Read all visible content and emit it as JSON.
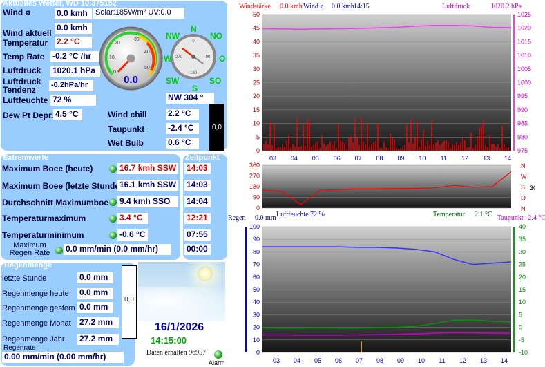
{
  "colors": {
    "panel": "#99ccff",
    "value_text": "#000066",
    "alert_text": "#cc0000",
    "wind": "#ff0000",
    "baro": "#ff33ff",
    "humidity": "#3333ff",
    "temp": "#009900",
    "dew": "#cc00cc"
  },
  "current": {
    "title": "Aktuelles Wetter, WD 10.375152",
    "wind_avg_label": "Wind ø",
    "wind_avg_value": "0.0 kmh",
    "solar_uv": "Solar:185W/m² UV:0.0",
    "wind_now_label": "Wind aktuell",
    "wind_now_value": "0.0 kmh",
    "temp_label": "Temperatur",
    "temp_value": "2.2 °C",
    "temp_rate_label": "Temp Rate",
    "temp_rate_value": "-0.2 °C /hr",
    "pressure_label": "Luftdruck",
    "pressure_value": "1020.1 hPa",
    "pressure_trend_label": "Luftdruck Tendenz",
    "pressure_trend_value": "-0.2hPa/hr",
    "humidity_label": "Luftfeuchte",
    "humidity_value": "72 %",
    "dewpt_label": "Dew Pt Depr.",
    "dewpt_value": "4.5 °C",
    "windchill_label": "Wind chill",
    "windchill_value": "2.2 °C",
    "taupunkt_label": "Taupunkt",
    "taupunkt_value": "-2.4 °C",
    "wetbulb_label": "Wet Bulb",
    "wetbulb_value": "0.6 °C",
    "gauge_value": "0.0",
    "gauge_ticks": [
      "0",
      "10",
      "20",
      "30",
      "40",
      "50"
    ],
    "compass": {
      "N": "N",
      "NO": "NO",
      "O": "O",
      "SO": "SO",
      "S": "S",
      "SW": "SW",
      "W": "W",
      "NW": "NW"
    },
    "wind_dir_value": "NW  304 °",
    "compass_ticks": [
      "0",
      "90",
      "180",
      "270"
    ],
    "side_meter_value": "0,0"
  },
  "extremes": {
    "title": "Extremwerte",
    "time_title": "Zeitpunkt",
    "rows": [
      {
        "label": "Maximum Boee (heute)",
        "value": "16.7 kmh SSW",
        "time": "14:03",
        "red": true
      },
      {
        "label": "Maximum Boee (letzte Stunde)",
        "value": "16.1 kmh SSW",
        "time": "14:03",
        "red": false
      },
      {
        "label": "Durchschnitt Maximumboee",
        "value": "9.4 kmh SSO",
        "time": "14:04",
        "red": false
      },
      {
        "label": "Temperaturmaximum",
        "value": "3.4 °C",
        "time": "12:21",
        "red": true
      },
      {
        "label": "Temperaturminimum",
        "value": "-0.6 °C",
        "time": "07:55",
        "red": false
      }
    ],
    "rain_rate_label": "Maximum Regen Rate",
    "rain_rate_value": "0.0 mm/min (0.0 mm/hr)",
    "rain_rate_time": "00:00"
  },
  "rain": {
    "title": "Regenmenge",
    "rows": [
      {
        "label": "letzte Stunde",
        "value": "0.0 mm"
      },
      {
        "label": "Regenmenge heute",
        "value": "0.0 mm"
      },
      {
        "label": "Regenmenge gestern",
        "value": "0.0 mm"
      },
      {
        "label": "Regenmenge Monat",
        "value": "27.2 mm"
      },
      {
        "label": "Regenmenge Jahr",
        "value": "27.2 mm"
      }
    ],
    "rate_label": "Regenrate",
    "rate_value": "0.00 mm/min (0.00 mm/hr)",
    "meter_value": "0,0"
  },
  "footer": {
    "date": "16/1/2026",
    "time": "14:15:00",
    "received": "Daten erhalten 96957",
    "alarm": "Alarm"
  },
  "chart_data": [
    {
      "type": "line",
      "header": {
        "wind_label": "Windstärke",
        "wind_val": "0.0 kmh",
        "wind_avg_label": "Wind ø",
        "wind_avg_val": "0.0 kmh",
        "time": "14:15",
        "baro_label": "Luftdruck",
        "baro_val": "1020.2 hPa"
      },
      "x_ticks": [
        "03",
        "04",
        "05",
        "06",
        "07",
        "08",
        "09",
        "10",
        "11",
        "12",
        "13",
        "14"
      ],
      "y_left": {
        "min": 0,
        "max": 50,
        "ticks": [
          "0",
          "5",
          "10",
          "15",
          "20",
          "25",
          "30",
          "35",
          "40",
          "45",
          "50"
        ]
      },
      "y_right": {
        "min": 975,
        "max": 1025,
        "ticks": [
          "975",
          "980",
          "985",
          "990",
          "995",
          "1000",
          "1005",
          "1010",
          "1015",
          "1020",
          "1025"
        ]
      },
      "series": [
        {
          "name": "Luftdruck",
          "values": [
            1019.8,
            1019.7,
            1019.6,
            1019.7,
            1019.8,
            1019.9,
            1020.1,
            1020.3,
            1020.7,
            1021.0,
            1021.0,
            1020.8,
            1020.3,
            1020.2
          ]
        }
      ]
    },
    {
      "type": "line",
      "y_left": {
        "min": 0,
        "max": 360,
        "ticks": [
          "0",
          "90",
          "180",
          "270",
          "360"
        ]
      },
      "y_right": {
        "ticks": [
          "N",
          "O",
          "S",
          "W",
          "N"
        ]
      },
      "dir_value": "304",
      "series": [
        {
          "name": "Windrichtung",
          "values": [
            150,
            140,
            30,
            150,
            155,
            160,
            160,
            165,
            165,
            170,
            190,
            175,
            180,
            304
          ]
        }
      ]
    },
    {
      "type": "line",
      "header": {
        "rain_label": "Regen",
        "rain_val": "0.0 mm",
        "hum_label": "Luftfeuchte",
        "hum_val": "72 %",
        "temp_label": "Temperatur",
        "temp_val": "2.1 °C",
        "dew_label": "Taupunkt",
        "dew_val": "-2.4 °C"
      },
      "x_ticks": [
        "03",
        "04",
        "05",
        "06",
        "07",
        "08",
        "09",
        "10",
        "11",
        "12",
        "13",
        "14"
      ],
      "y_left": {
        "min": 0,
        "max": 100,
        "ticks": [
          "0",
          "10",
          "20",
          "30",
          "40",
          "50",
          "60",
          "70",
          "80",
          "90",
          "100"
        ]
      },
      "y_right": {
        "min": -10,
        "max": 40,
        "ticks": [
          "-10",
          "-5",
          "0",
          "5",
          "10",
          "15",
          "20",
          "25",
          "30",
          "35",
          "40"
        ]
      },
      "series": [
        {
          "name": "Luftfeuchte",
          "values": [
            84,
            84,
            84,
            84,
            84,
            83.5,
            83.5,
            83,
            82,
            80,
            74,
            70,
            71,
            72
          ]
        },
        {
          "name": "Temperatur",
          "values": [
            -0.2,
            -0.3,
            -0.3,
            -0.2,
            -0.3,
            -0.3,
            -0.2,
            0.0,
            0.4,
            1.5,
            2.8,
            3.0,
            2.4,
            2.1
          ]
        },
        {
          "name": "Taupunkt",
          "values": [
            -3.0,
            -3.0,
            -3.1,
            -3.1,
            -3.1,
            -3.0,
            -2.9,
            -2.8,
            -2.6,
            -2.3,
            -2.1,
            -2.2,
            -2.3,
            -2.4
          ]
        }
      ]
    }
  ]
}
